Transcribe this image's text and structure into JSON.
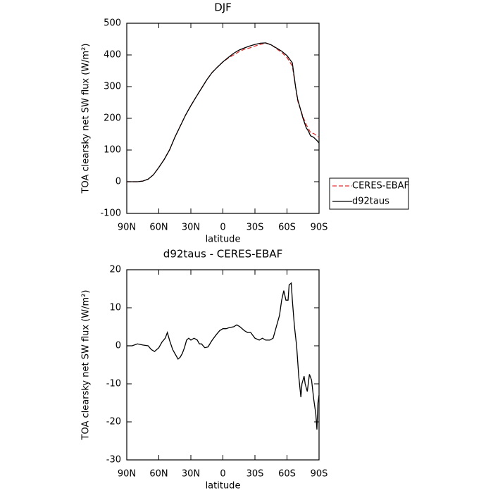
{
  "chart_data": [
    {
      "type": "line",
      "title": "DJF",
      "xlabel": "latitude",
      "ylabel": "TOA clearsky net SW flux (W/m²)",
      "x": [
        90,
        85,
        80,
        75,
        70,
        65,
        60,
        55,
        50,
        45,
        40,
        35,
        30,
        25,
        20,
        15,
        10,
        5,
        0,
        -5,
        -10,
        -15,
        -20,
        -25,
        -30,
        -35,
        -40,
        -45,
        -50,
        -55,
        -60,
        -65,
        -68,
        -70,
        -75,
        -78,
        -80,
        -82,
        -85,
        -88,
        -90
      ],
      "series": [
        {
          "name": "CERES-EBAF",
          "color": "#e03030",
          "linestyle": "dashed",
          "values": [
            0,
            0,
            0,
            2,
            8,
            22,
            45,
            70,
            100,
            140,
            175,
            210,
            240,
            268,
            295,
            322,
            345,
            362,
            378,
            390,
            400,
            410,
            418,
            422,
            428,
            433,
            437,
            433,
            420,
            408,
            392,
            365,
            300,
            255,
            205,
            180,
            168,
            155,
            152,
            145,
            140
          ]
        },
        {
          "name": "d92taus",
          "color": "#000000",
          "linestyle": "solid",
          "values": [
            0,
            0,
            0,
            2,
            8,
            22,
            45,
            70,
            100,
            140,
            175,
            210,
            240,
            268,
            295,
            322,
            345,
            362,
            378,
            392,
            405,
            415,
            422,
            428,
            433,
            437,
            438,
            432,
            422,
            412,
            398,
            375,
            300,
            260,
            200,
            170,
            160,
            145,
            140,
            130,
            122
          ]
        }
      ],
      "xlim": [
        90,
        -90
      ],
      "xticks": [
        {
          "value": 90,
          "label": "90N"
        },
        {
          "value": 60,
          "label": "60N"
        },
        {
          "value": 30,
          "label": "30N"
        },
        0,
        {
          "value": -30,
          "label": "30S"
        },
        {
          "value": -60,
          "label": "60S"
        },
        {
          "value": -90,
          "label": "90S"
        }
      ],
      "ylim": [
        -100,
        500
      ],
      "yticks": [
        -100,
        0,
        100,
        200,
        300,
        400,
        500
      ],
      "legend": "right"
    },
    {
      "type": "line",
      "title": "d92taus - CERES-EBAF",
      "xlabel": "latitude",
      "ylabel": "TOA clearsky net SW flux (W/m²)",
      "x": [
        90,
        85,
        80,
        75,
        70,
        67,
        64,
        60,
        57,
        54,
        52,
        50,
        47,
        44,
        42,
        40,
        38,
        36,
        34,
        32,
        30,
        27,
        24,
        22,
        20,
        17,
        14,
        10,
        6,
        3,
        0,
        -3,
        -6,
        -10,
        -13,
        -16,
        -20,
        -23,
        -26,
        -30,
        -34,
        -37,
        -40,
        -44,
        -47,
        -50,
        -53,
        -55,
        -57,
        -59,
        -61,
        -62,
        -64,
        -65,
        -67,
        -69,
        -71,
        -73,
        -74,
        -76,
        -77,
        -79,
        -81,
        -83,
        -85,
        -87,
        -88,
        -89,
        -90
      ],
      "series": [
        {
          "color": "#000000",
          "linestyle": "solid",
          "values": [
            0,
            0,
            0.5,
            0.2,
            0,
            -1,
            -1.5,
            -0.5,
            1,
            2,
            3.5,
            1.5,
            -1,
            -2.5,
            -3.5,
            -3,
            -2,
            -0.5,
            1.5,
            2,
            1.5,
            2,
            1.5,
            0.5,
            0.5,
            -0.5,
            -0.3,
            1.5,
            3,
            4,
            4.5,
            4.5,
            4.8,
            5,
            5.5,
            5,
            4,
            3.5,
            3.5,
            2,
            1.5,
            2,
            1.5,
            1.5,
            2,
            5,
            8,
            12,
            14.5,
            12,
            12,
            16,
            16.5,
            12,
            5,
            0,
            -8,
            -13.5,
            -10,
            -8,
            -10,
            -12,
            -7.5,
            -9,
            -14,
            -18,
            -22,
            -15,
            -13
          ]
        }
      ],
      "xlim": [
        90,
        -90
      ],
      "xticks": [
        {
          "value": 90,
          "label": "90N"
        },
        {
          "value": 60,
          "label": "60N"
        },
        {
          "value": 30,
          "label": "30N"
        },
        0,
        {
          "value": -30,
          "label": "30S"
        },
        {
          "value": -60,
          "label": "60S"
        },
        {
          "value": -90,
          "label": "90S"
        }
      ],
      "ylim": [
        -30,
        20
      ],
      "yticks": [
        -30,
        -20,
        -10,
        0,
        10,
        20
      ]
    }
  ]
}
